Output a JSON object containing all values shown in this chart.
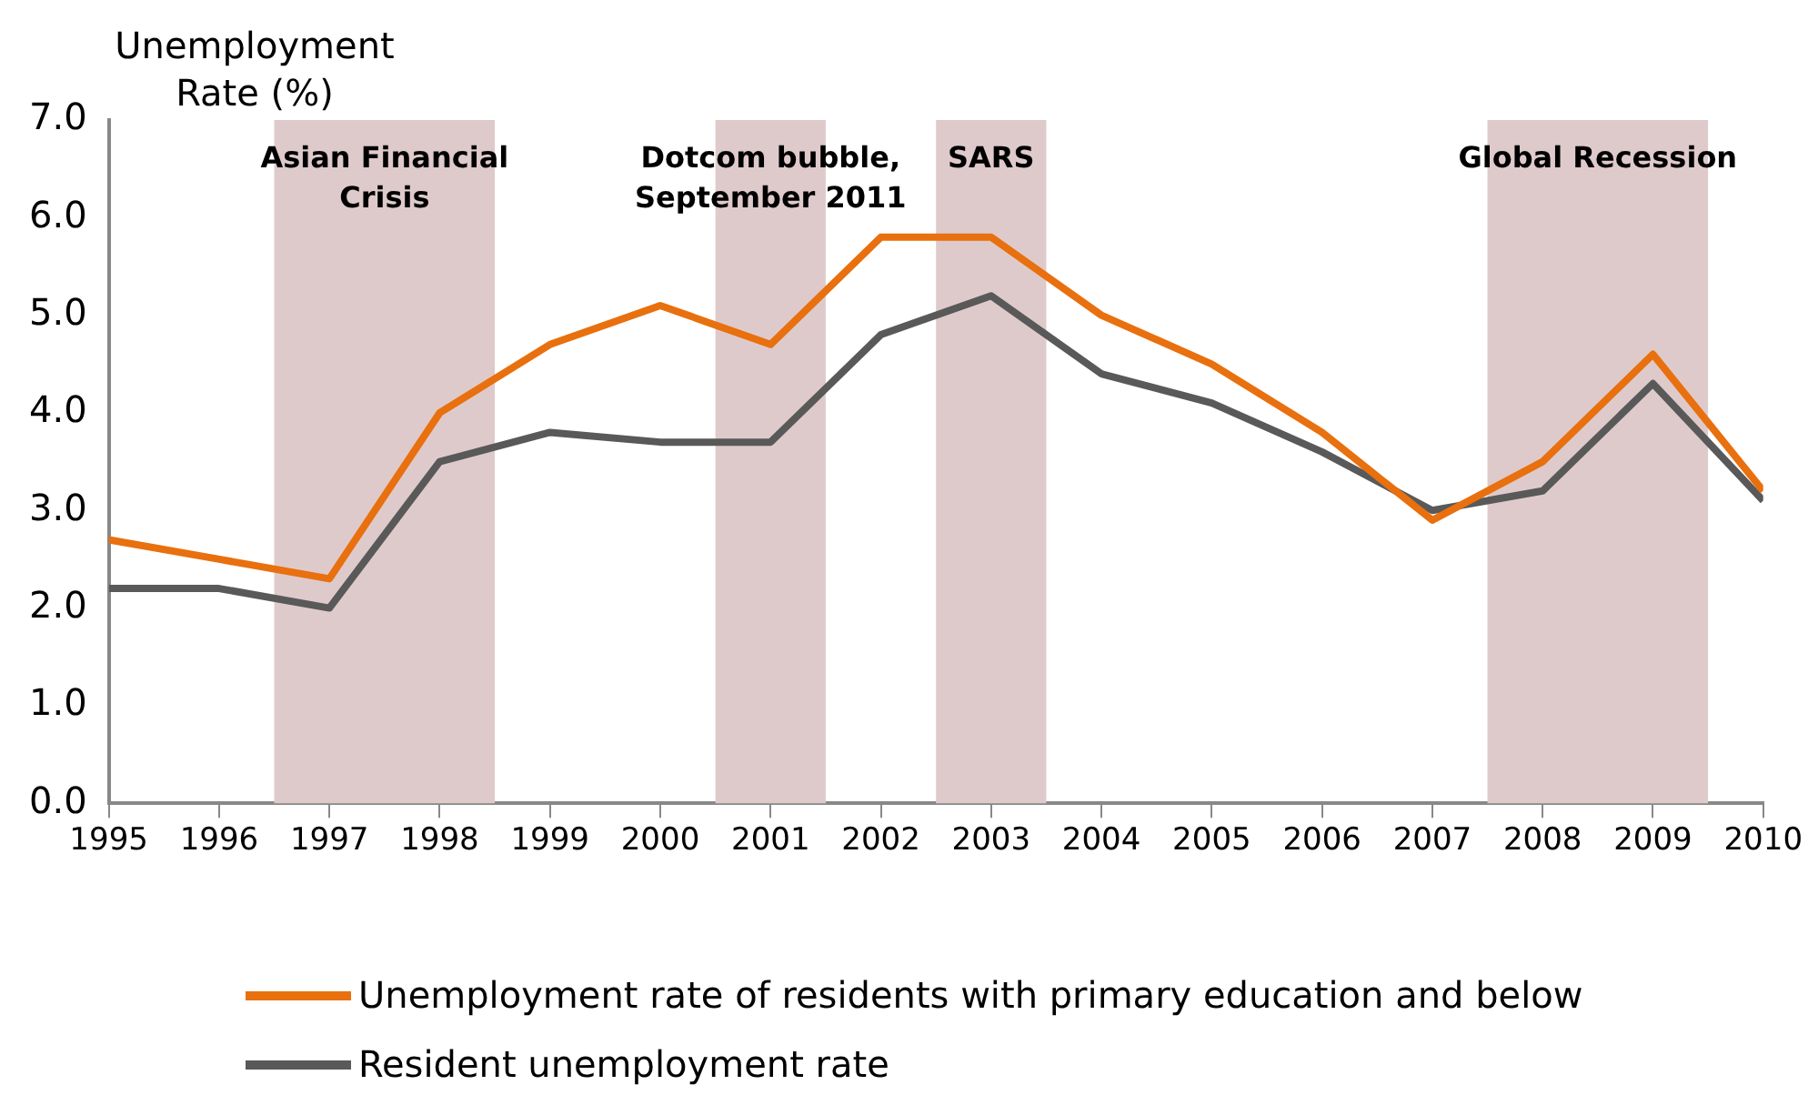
{
  "chart_data": {
    "type": "line",
    "ylabel": "Unemployment Rate (%)",
    "x": [
      1995,
      1996,
      1997,
      1998,
      1999,
      2000,
      2001,
      2002,
      2003,
      2004,
      2005,
      2006,
      2007,
      2008,
      2009,
      2010
    ],
    "series": [
      {
        "name": "Unemployment rate of residents with primary education and below",
        "color": "#e8700e",
        "values": [
          2.7,
          2.5,
          2.3,
          4.0,
          4.7,
          5.1,
          4.7,
          5.8,
          5.8,
          5.0,
          4.5,
          3.8,
          2.9,
          3.5,
          4.6,
          3.2
        ]
      },
      {
        "name": "Resident unemployment rate",
        "color": "#595959",
        "values": [
          2.2,
          2.2,
          2.0,
          3.5,
          3.8,
          3.7,
          3.7,
          4.8,
          5.2,
          4.4,
          4.1,
          3.6,
          3.0,
          3.2,
          4.3,
          3.1
        ]
      }
    ],
    "xlim": [
      1995,
      2010
    ],
    "xticks": [
      1995,
      1996,
      1997,
      1998,
      1999,
      2000,
      2001,
      2002,
      2003,
      2004,
      2005,
      2006,
      2007,
      2008,
      2009,
      2010
    ],
    "ylim": [
      0,
      7
    ],
    "yticks": [
      {
        "value": 0,
        "label": "0.0"
      },
      {
        "value": 1,
        "label": "1.0"
      },
      {
        "value": 2,
        "label": "2.0"
      },
      {
        "value": 3,
        "label": "3.0"
      },
      {
        "value": 4,
        "label": "4.0"
      },
      {
        "value": 5,
        "label": "5.0"
      },
      {
        "value": 6,
        "label": "6.0"
      },
      {
        "value": 7,
        "label": "7.0"
      }
    ],
    "bands": [
      {
        "axis": "x",
        "from": 1996.5,
        "to": 1998.5,
        "label": "Asian Financial Crisis",
        "color": "#dfcacb"
      },
      {
        "axis": "x",
        "from": 2000.5,
        "to": 2001.5,
        "label": "Dotcom bubble, September 2011",
        "color": "#dfcacb"
      },
      {
        "axis": "x",
        "from": 2002.5,
        "to": 2003.5,
        "label": "SARS",
        "color": "#dfcacb"
      },
      {
        "axis": "x",
        "from": 2007.5,
        "to": 2009.5,
        "label": "Global Recession",
        "color": "#dfcacb"
      }
    ],
    "grid": false,
    "legend": "bottom",
    "marker": "none",
    "line_style": "solid"
  }
}
